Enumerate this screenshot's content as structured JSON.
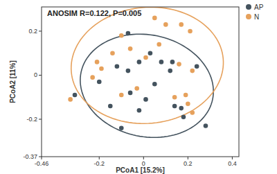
{
  "chart_data": {
    "type": "scatter",
    "annotation": "ANOSIM R=0.122, P=0.005",
    "x_label": "PCoA1 [15.2%]",
    "y_label": "PCoA2 [11%]",
    "xlim": [
      -0.46,
      0.43
    ],
    "ylim": [
      -0.37,
      0.31
    ],
    "xticks": [
      -0.46,
      -0.2,
      0,
      0.2,
      0.4
    ],
    "yticks": [
      -0.37,
      -0.2,
      0,
      0.2
    ],
    "grid": false,
    "legend": "top-right",
    "series": [
      {
        "name": "AP",
        "color": "#44535e",
        "marker": "circle",
        "x": [
          -0.07,
          -0.31,
          -0.12,
          -0.02,
          0.08,
          0.13,
          -0.07,
          0.12,
          0.24,
          -0.2,
          -0.06,
          0.05,
          0.01,
          0.14,
          0.17,
          0.18,
          -0.02,
          -0.1,
          0.28,
          0.03,
          -0.15
        ],
        "values": [
          0.19,
          -0.09,
          0.04,
          0.06,
          0.06,
          0.06,
          0.02,
          0.02,
          0.04,
          -0.03,
          -0.08,
          -0.04,
          -0.11,
          -0.14,
          -0.15,
          -0.19,
          -0.16,
          -0.24,
          -0.23,
          0.1,
          -0.14
        ]
      },
      {
        "name": "N",
        "color": "#e6a15c",
        "marker": "circle",
        "x": [
          0.05,
          0.1,
          0.17,
          0.21,
          -0.1,
          0.07,
          -0.14,
          -0.21,
          -0.19,
          -0.23,
          0.16,
          0.22,
          0.01,
          -0.03,
          -0.1,
          0.14,
          0.19,
          0.2,
          -0.33,
          0.22,
          -0.06
        ],
        "values": [
          0.26,
          0.23,
          0.23,
          0.2,
          0.18,
          0.14,
          0.1,
          0.06,
          0.03,
          -0.01,
          0.05,
          0.02,
          0.08,
          -0.06,
          -0.09,
          -0.1,
          -0.09,
          -0.13,
          -0.11,
          -0.17,
          0.12
        ]
      }
    ]
  }
}
